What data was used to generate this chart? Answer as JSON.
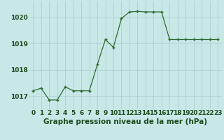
{
  "hours": [
    0,
    1,
    2,
    3,
    4,
    5,
    6,
    7,
    8,
    9,
    10,
    11,
    12,
    13,
    14,
    15,
    16,
    17,
    18,
    19,
    20,
    21,
    22,
    23
  ],
  "pressure": [
    1017.2,
    1017.3,
    1016.85,
    1016.85,
    1017.35,
    1017.2,
    1017.2,
    1017.2,
    1018.2,
    1019.15,
    1018.85,
    1019.95,
    1020.2,
    1020.22,
    1020.2,
    1020.2,
    1020.2,
    1019.15,
    1019.15,
    1019.15,
    1019.15,
    1019.15,
    1019.15,
    1019.15
  ],
  "line_color": "#2d6a2d",
  "marker": "+",
  "bg_color": "#c8e8e8",
  "grid_color": "#b0d4d4",
  "title": "Graphe pression niveau de la mer (hPa)",
  "ylabel_ticks": [
    1017,
    1018,
    1019,
    1020
  ],
  "ylim": [
    1016.5,
    1020.6
  ],
  "xlim": [
    -0.5,
    23.5
  ],
  "title_fontsize": 7.5,
  "tick_fontsize": 6.5,
  "title_color": "#1a4a1a",
  "tick_label_color": "#1a4a1a"
}
